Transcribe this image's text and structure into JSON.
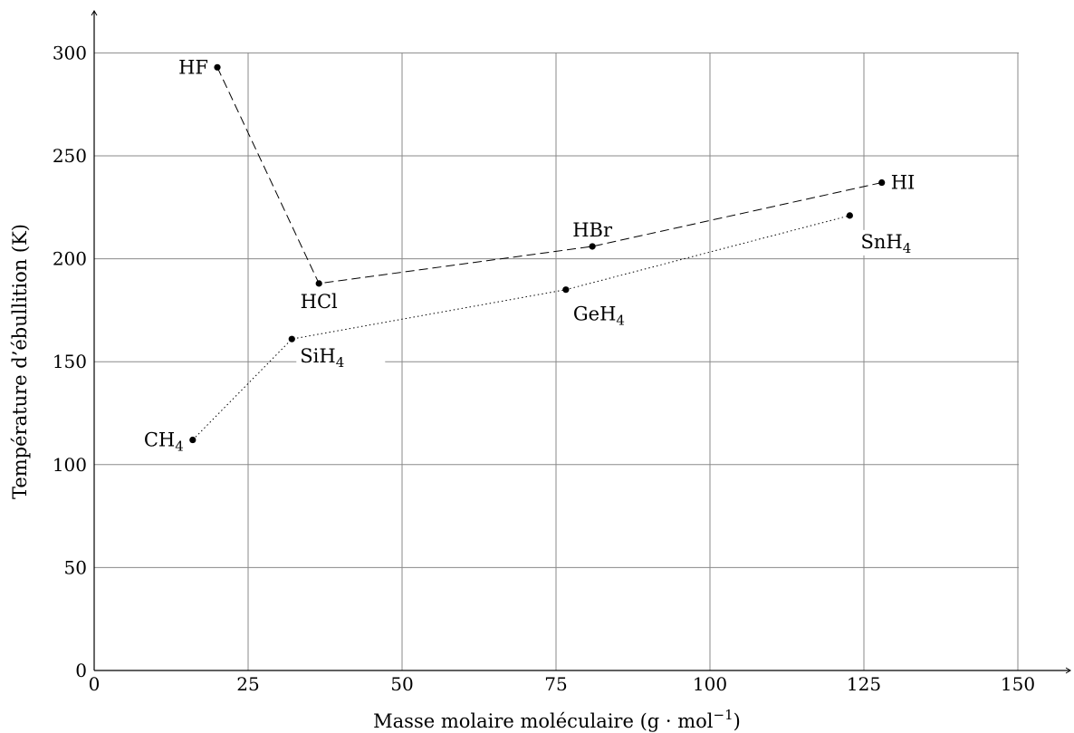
{
  "chart_data": {
    "type": "line",
    "xlabel": "Masse molaire moléculaire (g · mol",
    "xlabel_superscript": "−1",
    "xlabel_suffix": ")",
    "ylabel": "Température d’ébullition (K)",
    "xlim": [
      0,
      150
    ],
    "ylim": [
      0,
      300
    ],
    "x_ticks": [
      0,
      25,
      50,
      75,
      100,
      125,
      150
    ],
    "y_ticks": [
      0,
      50,
      100,
      150,
      200,
      250,
      300
    ],
    "grid": true,
    "series": [
      {
        "style": "dashed",
        "points": [
          {
            "label": "HF",
            "sub": "",
            "x": 20.0,
            "y": 293
          },
          {
            "label": "HCl",
            "sub": "",
            "x": 36.5,
            "y": 188
          },
          {
            "label": "HBr",
            "sub": "",
            "x": 80.9,
            "y": 206
          },
          {
            "label": "HI",
            "sub": "",
            "x": 127.9,
            "y": 237
          }
        ]
      },
      {
        "style": "dotted",
        "points": [
          {
            "label": "CH",
            "sub": "4",
            "x": 16.0,
            "y": 112
          },
          {
            "label": "SiH",
            "sub": "4",
            "x": 32.1,
            "y": 161
          },
          {
            "label": "GeH",
            "sub": "4",
            "x": 76.6,
            "y": 185
          },
          {
            "label": "SnH",
            "sub": "4",
            "x": 122.7,
            "y": 221
          }
        ]
      }
    ]
  }
}
